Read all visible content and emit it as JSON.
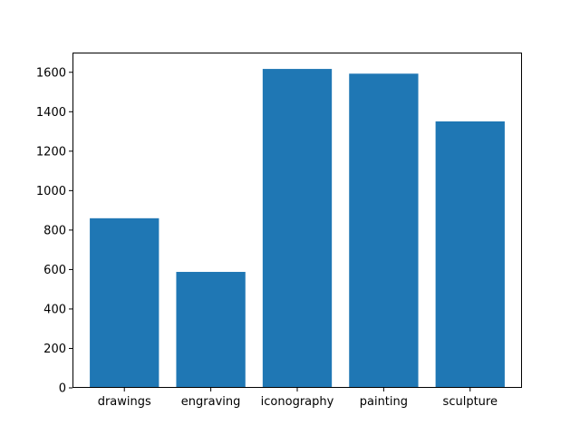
{
  "chart_data": {
    "type": "bar",
    "title": "",
    "xlabel": "",
    "ylabel": "",
    "categories": [
      "drawings",
      "engraving",
      "iconography",
      "painting",
      "sculpture"
    ],
    "values": [
      860,
      588,
      1617,
      1593,
      1351
    ],
    "ylim": [
      0,
      1700
    ],
    "yticks": [
      0,
      200,
      400,
      600,
      800,
      1000,
      1200,
      1400,
      1600
    ],
    "ytick_labels": [
      "0",
      "200",
      "400",
      "600",
      "800",
      "1000",
      "1200",
      "1400",
      "1600"
    ],
    "bar_color": "#1f77b4",
    "grid": false,
    "legend": "none"
  }
}
